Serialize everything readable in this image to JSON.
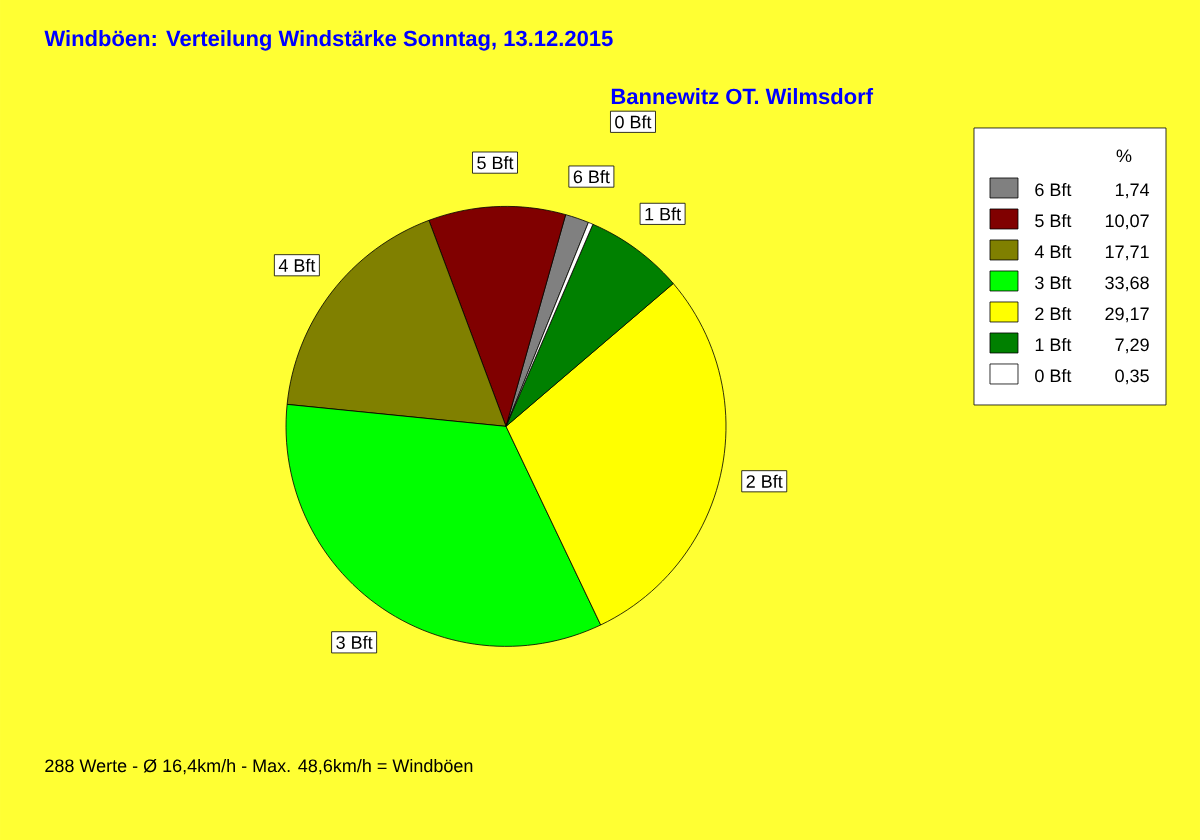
{
  "chart_data": {
    "type": "pie",
    "title": "Windböen: Verteilung Windstärke  Sonntag, 13.12.2015",
    "subtitle": "Bannewitz OT. Wilmsdorf",
    "categories": [
      "6 Bft",
      "5 Bft",
      "4 Bft",
      "3 Bft",
      "2 Bft",
      "1 Bft",
      "0 Bft"
    ],
    "values": [
      1.74,
      10.07,
      17.71,
      33.68,
      29.17,
      7.29,
      0.35
    ],
    "value_labels": [
      "1,74",
      "10,07",
      "17,71",
      "33,68",
      "29,17",
      "7,29",
      "0,35"
    ],
    "colors": [
      "#808080",
      "#800000",
      "#808000",
      "#00ff00",
      "#ffff00",
      "#008000",
      "#ffffff"
    ],
    "legend": "right",
    "legend_title": "%",
    "annotations": [
      "288 Werte   -   Ø 16,4km/h  -  Max. 48,6km/h = Windböen"
    ]
  }
}
